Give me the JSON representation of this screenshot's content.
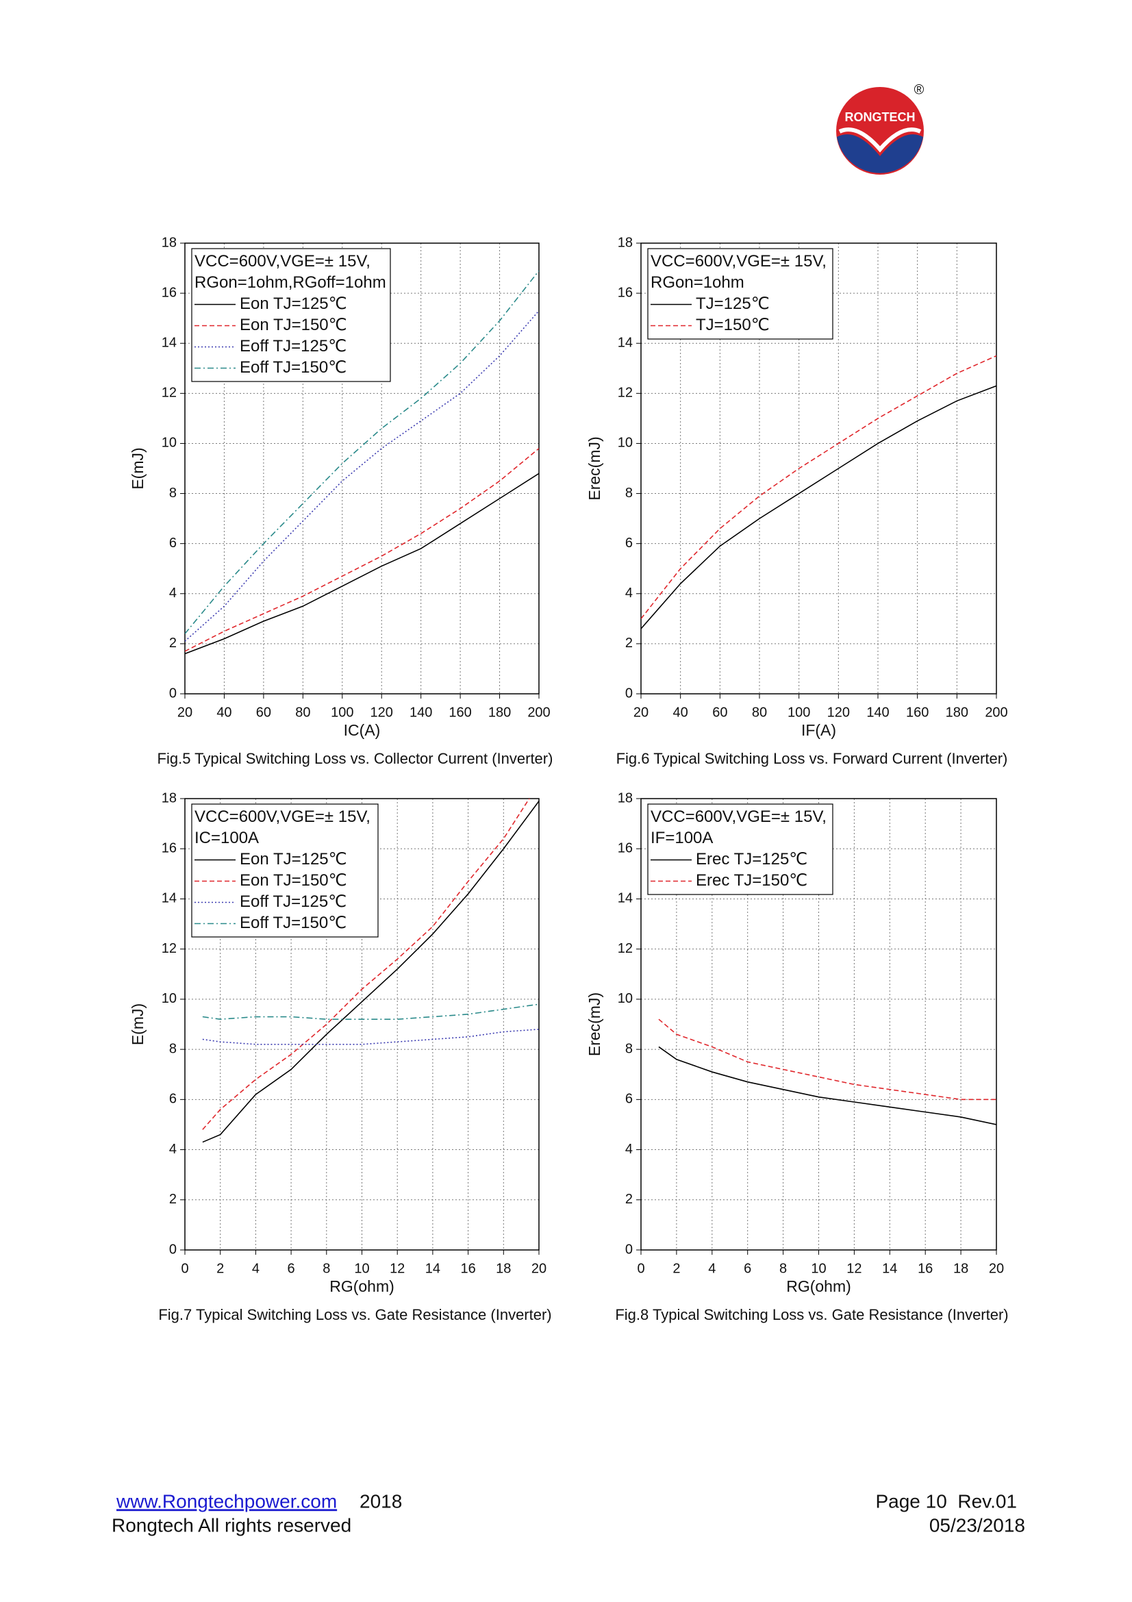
{
  "logo": {
    "name": "RONGTECH",
    "mark": "®"
  },
  "chart_data": [
    {
      "type": "line",
      "xlabel": "IC(A)",
      "ylabel": "E(mJ)",
      "caption": "Fig.5 Typical Switching Loss vs. Collector Current (Inverter)",
      "legend_title": [
        "VCC=600V,VGE=± 15V,",
        "RGon=1ohm,RGoff=1ohm"
      ],
      "grid": true,
      "x": [
        20,
        40,
        60,
        80,
        100,
        120,
        140,
        160,
        180,
        200
      ],
      "xlim": [
        20,
        200
      ],
      "xticks": [
        20,
        40,
        60,
        80,
        100,
        120,
        140,
        160,
        180,
        200
      ],
      "ylim": [
        0,
        18
      ],
      "yticks": [
        0,
        2,
        4,
        6,
        8,
        10,
        12,
        14,
        16,
        18
      ],
      "series": [
        {
          "name": "Eon TJ=125℃",
          "color": "#000000",
          "dash": "solid",
          "values": [
            1.6,
            2.2,
            2.9,
            3.5,
            4.3,
            5.1,
            5.8,
            6.8,
            7.8,
            8.8
          ]
        },
        {
          "name": "Eon TJ=150℃",
          "color": "#e0262b",
          "dash": "dashed",
          "values": [
            1.7,
            2.5,
            3.2,
            3.9,
            4.7,
            5.5,
            6.4,
            7.4,
            8.5,
            9.8
          ]
        },
        {
          "name": "Eoff TJ=125℃",
          "color": "#3a3ab0",
          "dash": "dotted",
          "values": [
            2.1,
            3.5,
            5.3,
            6.9,
            8.5,
            9.8,
            10.9,
            12.0,
            13.5,
            15.3
          ]
        },
        {
          "name": "Eoff TJ=150℃",
          "color": "#2a8a8a",
          "dash": "dashdot",
          "values": [
            2.4,
            4.3,
            6.0,
            7.6,
            9.2,
            10.6,
            11.8,
            13.2,
            14.9,
            16.9
          ]
        }
      ]
    },
    {
      "type": "line",
      "xlabel": "IF(A)",
      "ylabel": "Erec(mJ)",
      "caption": "Fig.6 Typical Switching Loss vs. Forward Current (Inverter)",
      "legend_title": [
        "VCC=600V,VGE=± 15V,",
        "RGon=1ohm"
      ],
      "grid": true,
      "x": [
        20,
        40,
        60,
        80,
        100,
        120,
        140,
        160,
        180,
        200
      ],
      "xlim": [
        20,
        200
      ],
      "xticks": [
        20,
        40,
        60,
        80,
        100,
        120,
        140,
        160,
        180,
        200
      ],
      "ylim": [
        0,
        18
      ],
      "yticks": [
        0,
        2,
        4,
        6,
        8,
        10,
        12,
        14,
        16,
        18
      ],
      "series": [
        {
          "name": "TJ=125℃",
          "color": "#000000",
          "dash": "solid",
          "values": [
            2.6,
            4.4,
            5.9,
            7.0,
            8.0,
            9.0,
            10.0,
            10.9,
            11.7,
            12.3
          ]
        },
        {
          "name": "TJ=150℃",
          "color": "#e0262b",
          "dash": "dashed",
          "values": [
            3.0,
            5.0,
            6.6,
            7.9,
            9.0,
            10.0,
            11.0,
            11.9,
            12.8,
            13.5
          ]
        }
      ]
    },
    {
      "type": "line",
      "xlabel": "RG(ohm)",
      "ylabel": "E(mJ)",
      "caption": "Fig.7 Typical Switching Loss vs. Gate Resistance (Inverter)",
      "legend_title": [
        "VCC=600V,VGE=± 15V,",
        "IC=100A"
      ],
      "grid": true,
      "x": [
        1,
        2,
        4,
        6,
        8,
        10,
        12,
        14,
        16,
        18,
        20
      ],
      "xlim": [
        0,
        20
      ],
      "xticks": [
        0,
        2,
        4,
        6,
        8,
        10,
        12,
        14,
        16,
        18,
        20
      ],
      "ylim": [
        0,
        18
      ],
      "yticks": [
        0,
        2,
        4,
        6,
        8,
        10,
        12,
        14,
        16,
        18
      ],
      "series": [
        {
          "name": "Eon TJ=125℃",
          "color": "#000000",
          "dash": "solid",
          "values": [
            4.3,
            4.6,
            6.2,
            7.2,
            8.6,
            9.9,
            11.2,
            12.6,
            14.2,
            16.0,
            17.9
          ]
        },
        {
          "name": "Eon TJ=150℃",
          "color": "#e0262b",
          "dash": "dashed",
          "values": [
            4.8,
            5.6,
            6.8,
            7.8,
            9.0,
            10.4,
            11.6,
            12.9,
            14.7,
            16.4,
            18.6
          ]
        },
        {
          "name": "Eoff TJ=125℃",
          "color": "#3a3ab0",
          "dash": "dotted",
          "values": [
            8.4,
            8.3,
            8.2,
            8.2,
            8.2,
            8.2,
            8.3,
            8.4,
            8.5,
            8.7,
            8.8
          ]
        },
        {
          "name": "Eoff TJ=150℃",
          "color": "#2a8a8a",
          "dash": "dashdot",
          "values": [
            9.3,
            9.2,
            9.3,
            9.3,
            9.2,
            9.2,
            9.2,
            9.3,
            9.4,
            9.6,
            9.8
          ]
        }
      ]
    },
    {
      "type": "line",
      "xlabel": "RG(ohm)",
      "ylabel": "Erec(mJ)",
      "caption": "Fig.8 Typical Switching Loss vs. Gate Resistance (Inverter)",
      "legend_title": [
        "VCC=600V,VGE=± 15V,",
        "IF=100A"
      ],
      "grid": true,
      "x": [
        1,
        2,
        4,
        6,
        8,
        10,
        12,
        14,
        16,
        18,
        20
      ],
      "xlim": [
        0,
        20
      ],
      "xticks": [
        0,
        2,
        4,
        6,
        8,
        10,
        12,
        14,
        16,
        18,
        20
      ],
      "ylim": [
        0,
        18
      ],
      "yticks": [
        0,
        2,
        4,
        6,
        8,
        10,
        12,
        14,
        16,
        18
      ],
      "series": [
        {
          "name": "Erec TJ=125℃",
          "color": "#000000",
          "dash": "solid",
          "values": [
            8.1,
            7.6,
            7.1,
            6.7,
            6.4,
            6.1,
            5.9,
            5.7,
            5.5,
            5.3,
            5.0
          ]
        },
        {
          "name": "Erec TJ=150℃",
          "color": "#e0262b",
          "dash": "dashed",
          "values": [
            9.2,
            8.6,
            8.1,
            7.5,
            7.2,
            6.9,
            6.6,
            6.4,
            6.2,
            6.0,
            6.0
          ]
        }
      ]
    }
  ],
  "footer": {
    "link": "www.Rongtechpower.com",
    "year": "2018",
    "rights": "Rongtech All rights reserved",
    "page": "Page 10  Rev.01",
    "date": "05/23/2018"
  }
}
